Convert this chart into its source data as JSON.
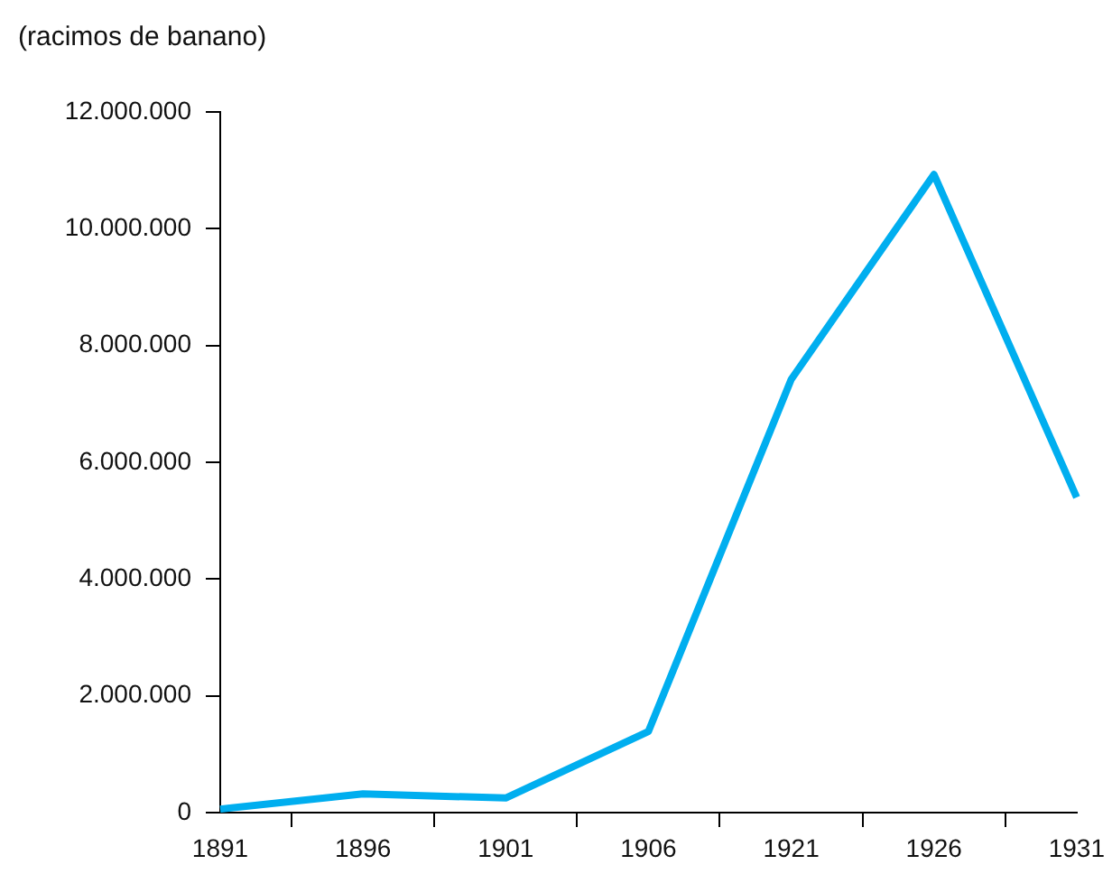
{
  "chart_data": {
    "type": "line",
    "ylabel": "(racimos de banano)",
    "categories": [
      "1891",
      "1896",
      "1901",
      "1906",
      "1921",
      "1926",
      "1931"
    ],
    "series": [
      {
        "color": "#00aeef",
        "values": [
          60000,
          320000,
          250000,
          1390000,
          7420000,
          10930000,
          5400000
        ]
      }
    ],
    "ylim": [
      0,
      12000000
    ],
    "yticks": [
      {
        "value": 0,
        "label": "0"
      },
      {
        "value": 2000000,
        "label": "2.000.000"
      },
      {
        "value": 4000000,
        "label": "4.000.000"
      },
      {
        "value": 6000000,
        "label": "6.000.000"
      },
      {
        "value": 8000000,
        "label": "8.000.000"
      },
      {
        "value": 10000000,
        "label": "10.000.000"
      },
      {
        "value": 12000000,
        "label": "12.000.000"
      }
    ]
  }
}
